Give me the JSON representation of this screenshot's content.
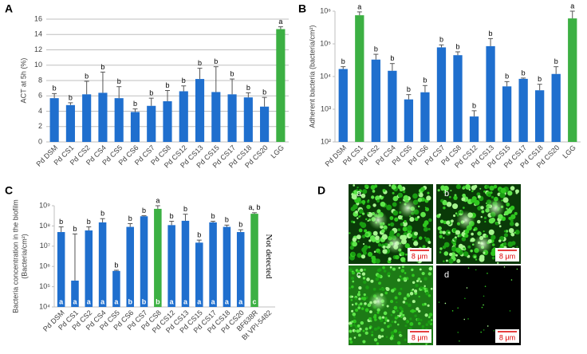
{
  "chart_data": [
    {
      "type": "bar",
      "panel": "A",
      "y_label": [
        "ACT at 5h (%)"
      ],
      "log": false,
      "grid": true,
      "categories": [
        "Pd DSM",
        "Pd CS1",
        "Pd CS2",
        "Pd CS4",
        "Pd CS5",
        "Pd CS6",
        "Pd CS7",
        "Pd CS8",
        "Pd CS12",
        "Pd CS13",
        "Pd CS15",
        "Pd CS17",
        "Pd CS18",
        "Pd CS20",
        "LGG"
      ],
      "values": [
        5.7,
        4.8,
        6.2,
        6.4,
        5.7,
        3.9,
        4.7,
        5.3,
        6.6,
        8.2,
        6.5,
        6.2,
        5.8,
        4.6,
        14.7
      ],
      "errors": [
        0.6,
        0.3,
        1.7,
        2.7,
        1.5,
        0.4,
        1.0,
        1.4,
        0.7,
        1.4,
        3.3,
        2.0,
        0.6,
        1.2,
        0.3
      ],
      "letters": [
        "b",
        "b",
        "b",
        "b",
        "b",
        "b",
        "b",
        "b",
        "b",
        "b",
        "b",
        "b",
        "b",
        "b",
        "a"
      ],
      "colors": [
        "#1f6fce",
        "#1f6fce",
        "#1f6fce",
        "#1f6fce",
        "#1f6fce",
        "#1f6fce",
        "#1f6fce",
        "#1f6fce",
        "#1f6fce",
        "#1f6fce",
        "#1f6fce",
        "#1f6fce",
        "#1f6fce",
        "#1f6fce",
        "#3cb043"
      ],
      "ylim": [
        0,
        16
      ],
      "yticks": [
        0,
        2,
        4,
        6,
        8,
        10,
        12,
        14,
        16
      ]
    },
    {
      "type": "bar",
      "panel": "B",
      "y_label": [
        "Adherent bacteria (bacteria/cm²)"
      ],
      "log": true,
      "grid": false,
      "categories": [
        "Pd DSM",
        "Pd CS1",
        "Pd CS2",
        "Pd CS4",
        "Pd CS5",
        "Pd CS6",
        "Pd CS7",
        "Pd CS8",
        "Pd CS12",
        "Pd CS13",
        "Pd CS15",
        "Pd CS17",
        "Pd CS18",
        "Pd CS20",
        "LGG"
      ],
      "values": [
        17000,
        750000,
        33000,
        15000,
        2000,
        3300,
        78000,
        45000,
        600,
        85000,
        5000,
        8500,
        3800,
        12000,
        600000
      ],
      "errors": [
        3000,
        200000,
        15000,
        10000,
        800,
        2000,
        15000,
        12000,
        300,
        60000,
        2000,
        500,
        2000,
        8000,
        400000
      ],
      "letters": [
        "b",
        "a",
        "b",
        "b",
        "b",
        "b",
        "b",
        "b",
        "b",
        "b",
        "b",
        "b",
        "b",
        "b",
        "a"
      ],
      "colors": [
        "#1f6fce",
        "#3cb043",
        "#1f6fce",
        "#1f6fce",
        "#1f6fce",
        "#1f6fce",
        "#1f6fce",
        "#1f6fce",
        "#1f6fce",
        "#1f6fce",
        "#1f6fce",
        "#1f6fce",
        "#1f6fce",
        "#1f6fce",
        "#3cb043"
      ],
      "ylim": [
        100,
        1000000
      ],
      "yticks": [
        {
          "value": 100,
          "label": "10²"
        },
        {
          "value": 1000,
          "label": "10³"
        },
        {
          "value": 10000,
          "label": "10⁴"
        },
        {
          "value": 100000,
          "label": "10⁵"
        },
        {
          "value": 1000000,
          "label": "10⁶"
        }
      ]
    },
    {
      "type": "bar",
      "panel": "C",
      "y_label": [
        "Bacteria concentration in the biofilm",
        "(Bacteria/cm²)"
      ],
      "log": true,
      "grid": false,
      "categories": [
        "Pd DSM",
        "Pd CS1",
        "Pd CS2",
        "Pd CS4",
        "Pd CS5",
        "Pd CS6",
        "Pd CS7",
        "Pd CS8",
        "Pd CS12",
        "Pd CS13",
        "Pd CS15",
        "Pd CS17",
        "Pd CS18",
        "Pd CS20",
        "BF638R",
        "Bt VPI-5482"
      ],
      "values": [
        50000000,
        200000,
        60000000,
        150000000,
        600000,
        90000000,
        300000000,
        700000000,
        110000000,
        180000000,
        15000000,
        150000000,
        90000000,
        50000000,
        400000000,
        null
      ],
      "errors": [
        40000000,
        40000000,
        30000000,
        80000000,
        50000,
        40000000,
        20000000,
        300000000,
        60000000,
        200000000,
        5000000,
        20000000,
        20000000,
        15000000,
        50000000,
        null
      ],
      "letters": [
        "b",
        "b",
        "b",
        "b",
        "b",
        "b",
        "b",
        "a",
        "b",
        "b",
        "b",
        "b",
        "b",
        "b",
        "a, b",
        null
      ],
      "bottom_letters": [
        "a",
        "a",
        "a",
        "a",
        "a",
        "b",
        "b",
        "b",
        "a",
        "a",
        "a",
        "a",
        "a",
        "a",
        "c",
        null
      ],
      "colors": [
        "#1f6fce",
        "#1f6fce",
        "#1f6fce",
        "#1f6fce",
        "#1f6fce",
        "#1f6fce",
        "#1f6fce",
        "#3cb043",
        "#1f6fce",
        "#1f6fce",
        "#1f6fce",
        "#1f6fce",
        "#1f6fce",
        "#1f6fce",
        "#3cb043",
        "#1f6fce"
      ],
      "annotation": "Not detected",
      "ylim": [
        10000,
        1000000000
      ],
      "yticks": [
        {
          "value": 10000,
          "label": "10⁴"
        },
        {
          "value": 100000,
          "label": "10⁵"
        },
        {
          "value": 1000000,
          "label": "10⁶"
        },
        {
          "value": 10000000,
          "label": "10⁷"
        },
        {
          "value": 100000000,
          "label": "10⁸"
        },
        {
          "value": 1000000000,
          "label": "10⁹"
        }
      ]
    }
  ],
  "panel_d": {
    "panel": "D",
    "images": [
      {
        "label": "a",
        "scale": "8 μm"
      },
      {
        "label": "b",
        "scale": "8 μm"
      },
      {
        "label": "c",
        "scale": "8 μm"
      },
      {
        "label": "d",
        "scale": "8 μm"
      }
    ]
  }
}
